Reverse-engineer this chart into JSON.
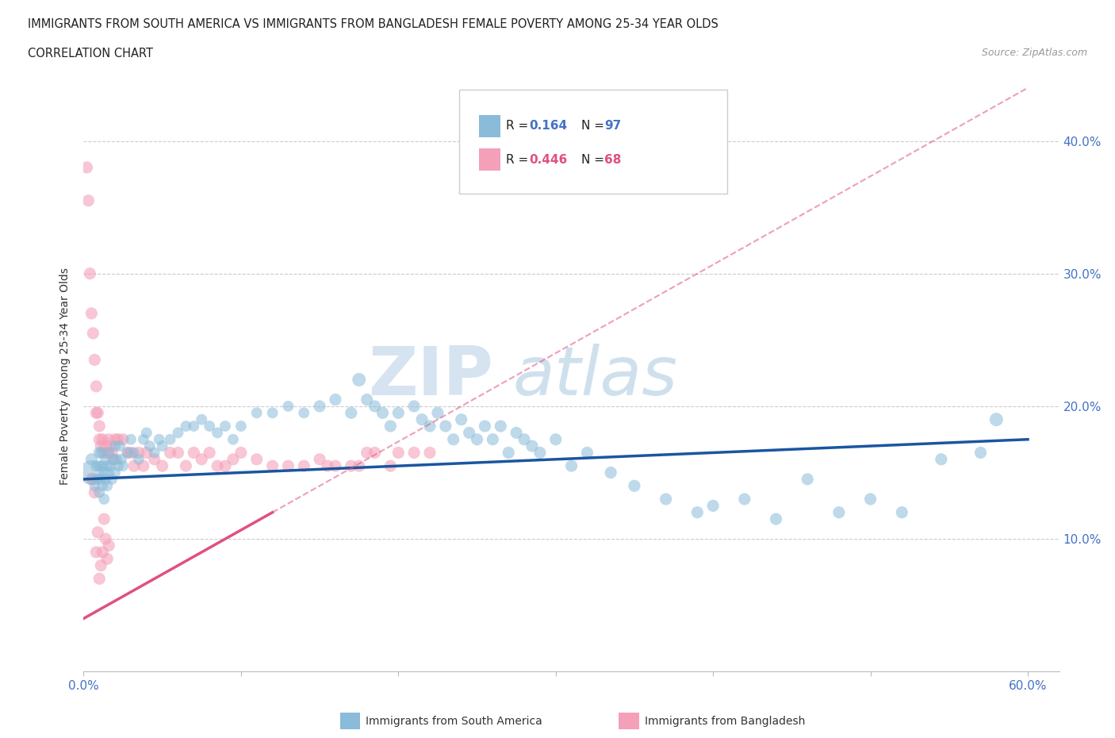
{
  "title_line1": "IMMIGRANTS FROM SOUTH AMERICA VS IMMIGRANTS FROM BANGLADESH FEMALE POVERTY AMONG 25-34 YEAR OLDS",
  "title_line2": "CORRELATION CHART",
  "source_text": "Source: ZipAtlas.com",
  "ylabel": "Female Poverty Among 25-34 Year Olds",
  "xlim": [
    0.0,
    0.62
  ],
  "ylim": [
    0.0,
    0.445
  ],
  "color_blue": "#8abbd8",
  "color_pink": "#f4a0b8",
  "line_blue": "#1a56a0",
  "line_pink": "#e05080",
  "background_color": "#ffffff",
  "blue_x": [
    0.005,
    0.005,
    0.007,
    0.008,
    0.009,
    0.01,
    0.01,
    0.01,
    0.011,
    0.011,
    0.012,
    0.012,
    0.013,
    0.013,
    0.014,
    0.014,
    0.015,
    0.015,
    0.016,
    0.016,
    0.017,
    0.018,
    0.019,
    0.02,
    0.02,
    0.021,
    0.022,
    0.023,
    0.024,
    0.025,
    0.028,
    0.03,
    0.032,
    0.035,
    0.038,
    0.04,
    0.042,
    0.045,
    0.048,
    0.05,
    0.055,
    0.06,
    0.065,
    0.07,
    0.075,
    0.08,
    0.085,
    0.09,
    0.095,
    0.1,
    0.11,
    0.12,
    0.13,
    0.14,
    0.15,
    0.16,
    0.17,
    0.175,
    0.18,
    0.185,
    0.19,
    0.195,
    0.2,
    0.21,
    0.215,
    0.22,
    0.225,
    0.23,
    0.235,
    0.24,
    0.245,
    0.25,
    0.255,
    0.26,
    0.265,
    0.27,
    0.275,
    0.28,
    0.285,
    0.29,
    0.3,
    0.31,
    0.32,
    0.335,
    0.35,
    0.37,
    0.39,
    0.4,
    0.42,
    0.44,
    0.46,
    0.48,
    0.5,
    0.52,
    0.545,
    0.57,
    0.58
  ],
  "blue_y": [
    0.15,
    0.16,
    0.14,
    0.155,
    0.145,
    0.165,
    0.135,
    0.155,
    0.145,
    0.165,
    0.155,
    0.14,
    0.15,
    0.13,
    0.145,
    0.16,
    0.155,
    0.14,
    0.15,
    0.165,
    0.155,
    0.145,
    0.16,
    0.17,
    0.15,
    0.16,
    0.155,
    0.17,
    0.16,
    0.155,
    0.165,
    0.175,
    0.165,
    0.16,
    0.175,
    0.18,
    0.17,
    0.165,
    0.175,
    0.17,
    0.175,
    0.18,
    0.185,
    0.185,
    0.19,
    0.185,
    0.18,
    0.185,
    0.175,
    0.185,
    0.195,
    0.195,
    0.2,
    0.195,
    0.2,
    0.205,
    0.195,
    0.22,
    0.205,
    0.2,
    0.195,
    0.185,
    0.195,
    0.2,
    0.19,
    0.185,
    0.195,
    0.185,
    0.175,
    0.19,
    0.18,
    0.175,
    0.185,
    0.175,
    0.185,
    0.165,
    0.18,
    0.175,
    0.17,
    0.165,
    0.175,
    0.155,
    0.165,
    0.15,
    0.14,
    0.13,
    0.12,
    0.125,
    0.13,
    0.115,
    0.145,
    0.12,
    0.13,
    0.12,
    0.16,
    0.165,
    0.19
  ],
  "blue_sizes": [
    500,
    120,
    100,
    100,
    100,
    120,
    100,
    100,
    100,
    100,
    100,
    100,
    100,
    100,
    100,
    100,
    100,
    100,
    100,
    100,
    100,
    100,
    100,
    100,
    100,
    100,
    100,
    100,
    100,
    100,
    100,
    100,
    100,
    100,
    100,
    100,
    100,
    100,
    100,
    100,
    100,
    100,
    100,
    100,
    100,
    100,
    100,
    100,
    100,
    100,
    100,
    100,
    100,
    100,
    120,
    120,
    120,
    150,
    120,
    120,
    120,
    120,
    120,
    120,
    120,
    120,
    120,
    120,
    120,
    120,
    120,
    120,
    120,
    120,
    120,
    120,
    120,
    120,
    120,
    120,
    120,
    120,
    120,
    120,
    120,
    120,
    120,
    120,
    120,
    120,
    120,
    120,
    120,
    120,
    120,
    120,
    150
  ],
  "pink_x": [
    0.002,
    0.003,
    0.004,
    0.005,
    0.005,
    0.006,
    0.006,
    0.007,
    0.007,
    0.008,
    0.008,
    0.008,
    0.009,
    0.009,
    0.01,
    0.01,
    0.01,
    0.011,
    0.011,
    0.012,
    0.012,
    0.013,
    0.013,
    0.014,
    0.014,
    0.015,
    0.015,
    0.016,
    0.016,
    0.017,
    0.018,
    0.019,
    0.02,
    0.022,
    0.025,
    0.028,
    0.03,
    0.032,
    0.035,
    0.038,
    0.04,
    0.045,
    0.05,
    0.055,
    0.06,
    0.065,
    0.07,
    0.075,
    0.08,
    0.085,
    0.09,
    0.095,
    0.1,
    0.11,
    0.12,
    0.13,
    0.14,
    0.15,
    0.155,
    0.16,
    0.17,
    0.175,
    0.18,
    0.185,
    0.195,
    0.2,
    0.21,
    0.22
  ],
  "pink_y": [
    0.38,
    0.355,
    0.3,
    0.27,
    0.145,
    0.255,
    0.145,
    0.235,
    0.135,
    0.215,
    0.195,
    0.09,
    0.195,
    0.105,
    0.185,
    0.175,
    0.07,
    0.17,
    0.08,
    0.175,
    0.09,
    0.165,
    0.115,
    0.17,
    0.1,
    0.165,
    0.085,
    0.175,
    0.095,
    0.17,
    0.165,
    0.16,
    0.175,
    0.175,
    0.175,
    0.165,
    0.165,
    0.155,
    0.165,
    0.155,
    0.165,
    0.16,
    0.155,
    0.165,
    0.165,
    0.155,
    0.165,
    0.16,
    0.165,
    0.155,
    0.155,
    0.16,
    0.165,
    0.16,
    0.155,
    0.155,
    0.155,
    0.16,
    0.155,
    0.155,
    0.155,
    0.155,
    0.165,
    0.165,
    0.155,
    0.165,
    0.165,
    0.165
  ],
  "pink_sizes": [
    120,
    120,
    120,
    120,
    120,
    120,
    120,
    120,
    120,
    120,
    120,
    120,
    120,
    120,
    120,
    120,
    120,
    120,
    120,
    120,
    120,
    120,
    120,
    120,
    120,
    120,
    120,
    120,
    120,
    120,
    120,
    120,
    120,
    120,
    120,
    120,
    120,
    120,
    120,
    120,
    120,
    120,
    120,
    120,
    120,
    120,
    120,
    120,
    120,
    120,
    120,
    120,
    120,
    120,
    120,
    120,
    120,
    120,
    120,
    120,
    120,
    120,
    120,
    120,
    120,
    120,
    120,
    120
  ],
  "pink_line_start_x": 0.0,
  "pink_line_end_solid_x": 0.12,
  "pink_line_end_x": 0.6,
  "pink_line_start_y": 0.04,
  "pink_line_end_y": 0.44,
  "blue_line_start_x": 0.0,
  "blue_line_end_x": 0.6,
  "blue_line_start_y": 0.145,
  "blue_line_end_y": 0.175
}
